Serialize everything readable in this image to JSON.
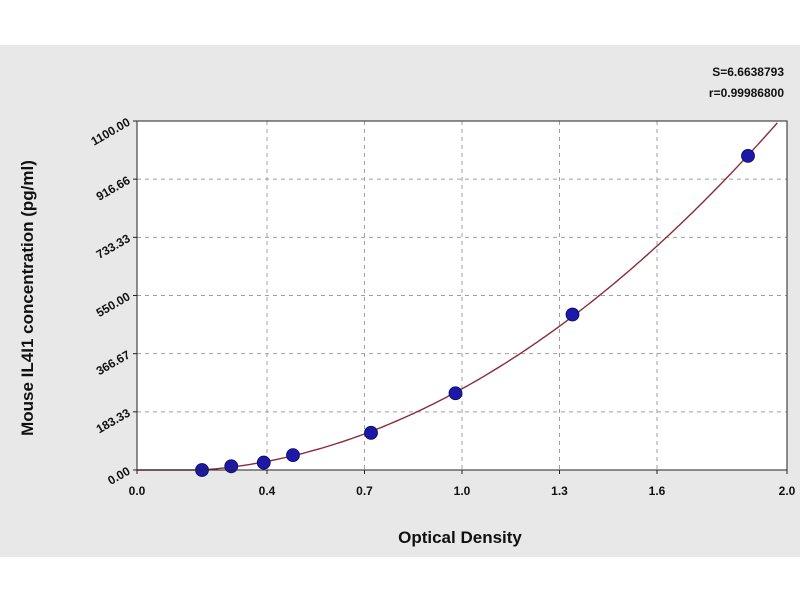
{
  "stats": {
    "s_line": "S=6.6638793",
    "r_line": "r=0.99986800"
  },
  "chart_data": {
    "type": "scatter",
    "xlabel": "Optical Density",
    "ylabel": "Mouse IL4I1 concentration (pg/ml)",
    "xlim": [
      0.0,
      2.0
    ],
    "ylim": [
      0.0,
      1100.0
    ],
    "x_ticks": [
      0.0,
      0.4,
      0.7,
      1.0,
      1.3,
      1.6,
      2.0
    ],
    "x_tick_labels": [
      "0.0",
      "0.4",
      "0.7",
      "1.0",
      "1.3",
      "1.6",
      "2.0"
    ],
    "y_ticks": [
      0.0,
      183.33,
      366.67,
      550.0,
      733.33,
      916.66,
      1100.0
    ],
    "y_tick_labels": [
      "0.00",
      "183.33",
      "366.67",
      "550.00",
      "733.33",
      "916.66",
      "1100.00"
    ],
    "grid": true,
    "series": [
      {
        "points": [
          {
            "x": 0.2,
            "y": 0
          },
          {
            "x": 0.29,
            "y": 11.7
          },
          {
            "x": 0.39,
            "y": 23.4
          },
          {
            "x": 0.48,
            "y": 46.9
          },
          {
            "x": 0.72,
            "y": 117.2
          },
          {
            "x": 0.98,
            "y": 242
          },
          {
            "x": 1.34,
            "y": 490
          },
          {
            "x": 1.88,
            "y": 990
          }
        ]
      }
    ],
    "fit_curve": true,
    "colors": {
      "points": "#1c18a8",
      "curve": "#8a2a3a",
      "grid": "#a0a0a0",
      "plot_bg": "#ffffff",
      "panel_bg": "#e8e8e8"
    }
  }
}
